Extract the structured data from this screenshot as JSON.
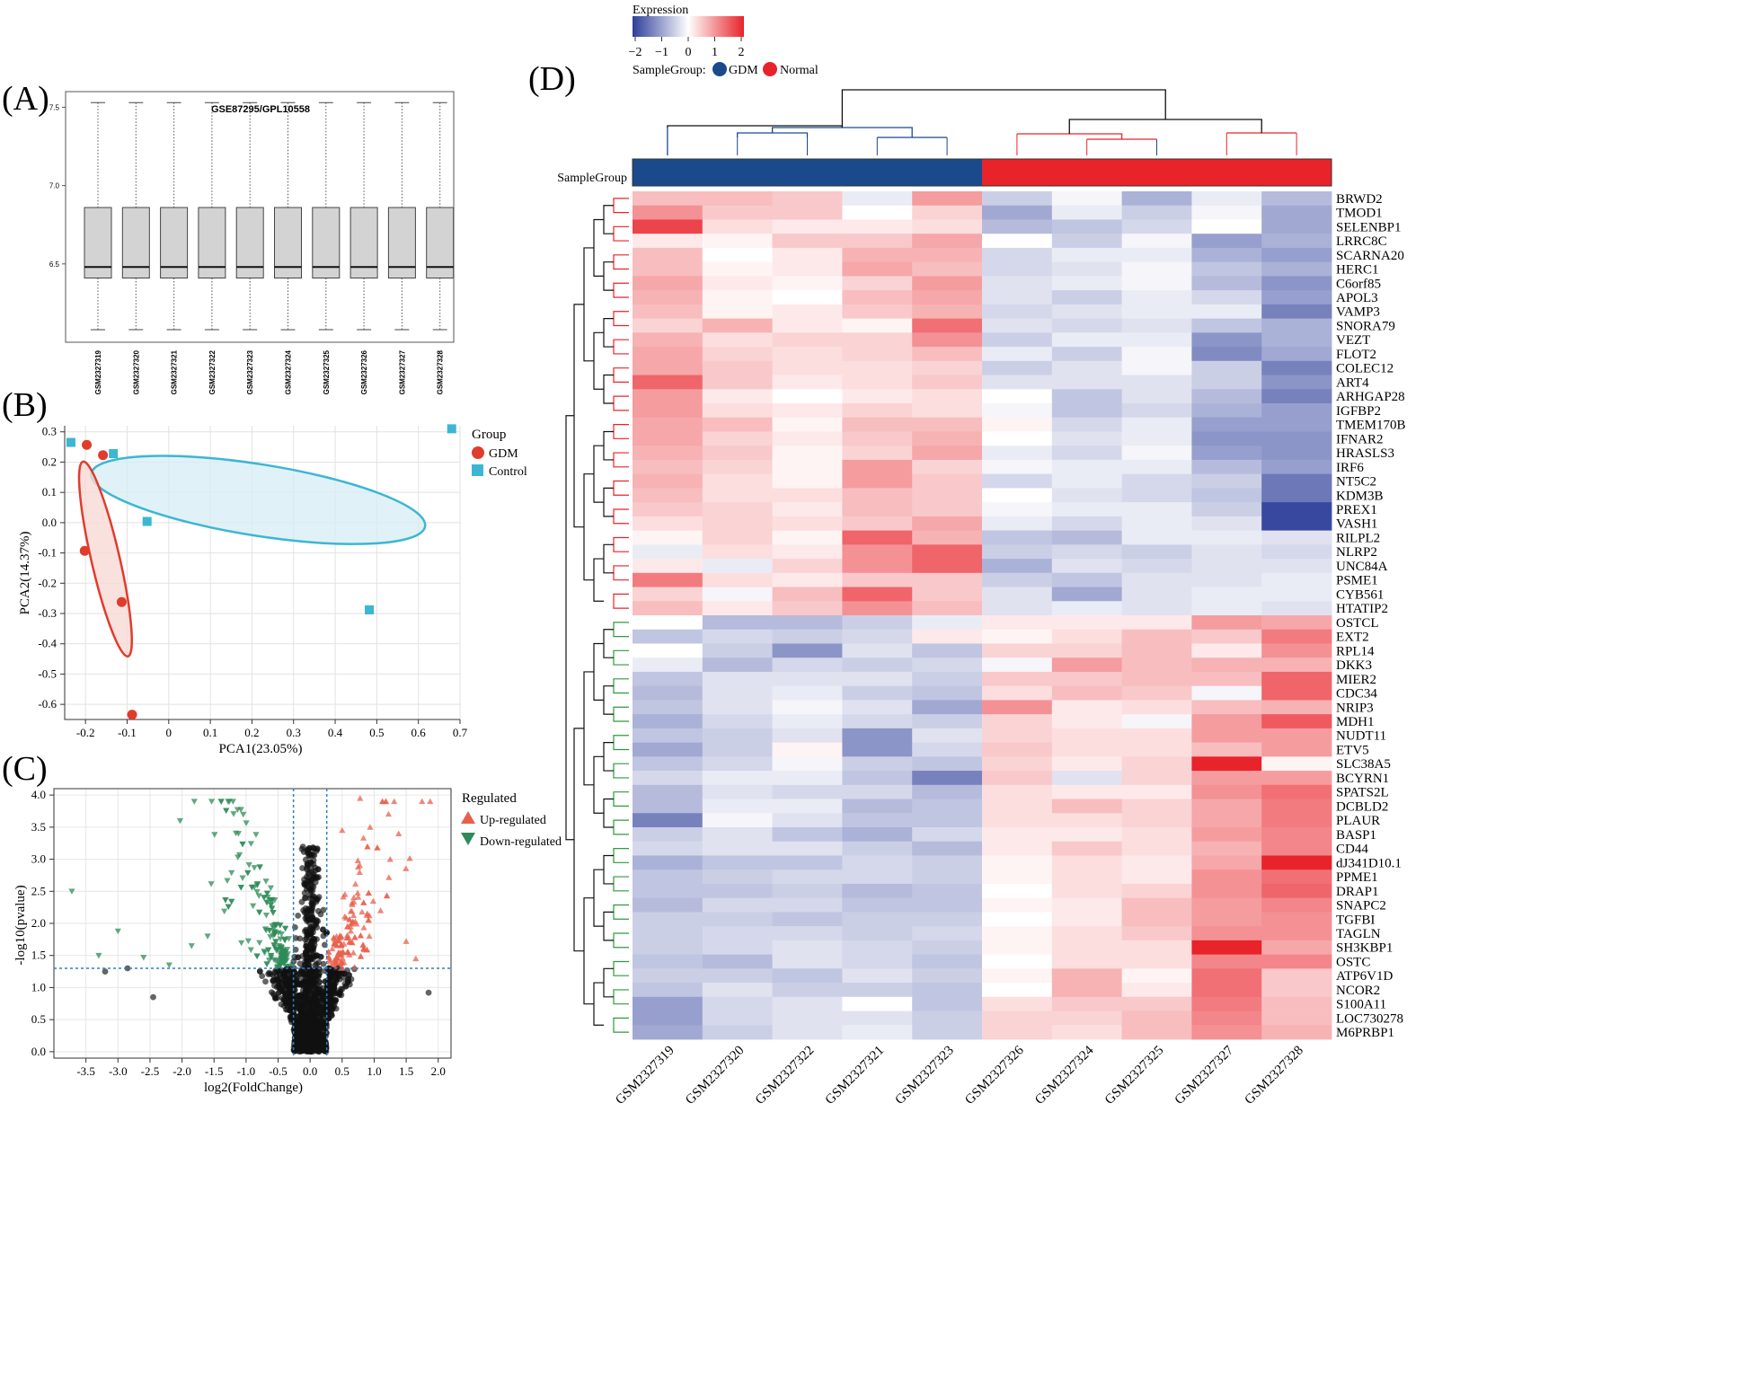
{
  "panel_labels": {
    "a": "(A)",
    "b": "(B)",
    "c": "(C)",
    "d": "(D)"
  },
  "chart_data": [
    {
      "type": "box",
      "title": "GSE87295/GPL10558",
      "categories": [
        "GSM2327319",
        "GSM2327320",
        "GSM2327321",
        "GSM2327322",
        "GSM2327323",
        "GSM2327324",
        "GSM2327325",
        "GSM2327326",
        "GSM2327327",
        "GSM2327328"
      ],
      "stats": {
        "whisker_low": 6.08,
        "q1": 6.41,
        "median": 6.48,
        "q3": 6.86,
        "whisker_high": 7.53
      },
      "y_ticks": [
        "6.5",
        "7.0",
        "7.5"
      ],
      "ylim": [
        6.0,
        7.6
      ],
      "color": "#d3d3d3"
    },
    {
      "type": "scatter",
      "xlabel": "PCA1(23.05%)",
      "ylabel": "PCA2(14.37%)",
      "xlim": [
        -0.25,
        0.7
      ],
      "ylim": [
        -0.65,
        0.32
      ],
      "x_ticks": [
        -0.2,
        -0.1,
        0.0,
        0.1,
        0.2,
        0.3,
        0.4,
        0.5,
        0.6,
        0.7
      ],
      "x_tick_labels": [
        "-0.2",
        "-0.1",
        "0",
        "0.1",
        "0.2",
        "0.3",
        "0.4",
        "0.5",
        "0.6",
        "0.7"
      ],
      "y_ticks": [
        0.3,
        0.2,
        0.1,
        0.0,
        -0.1,
        -0.2,
        -0.3,
        -0.4,
        -0.5,
        -0.6
      ],
      "y_tick_labels": [
        "0.3",
        "0.2",
        "0.1",
        "0.0",
        "-0.1",
        "-0.2",
        "-0.3",
        "-0.4",
        "-0.5",
        "-0.6"
      ],
      "legend_title": "Group",
      "series": [
        {
          "name": "GDM",
          "color": "#e03c2c",
          "marker": "circle",
          "points": [
            [
              -0.197,
              0.257
            ],
            [
              -0.158,
              0.223
            ],
            [
              -0.202,
              -0.093
            ],
            [
              -0.113,
              -0.262
            ],
            [
              -0.088,
              -0.634
            ]
          ]
        },
        {
          "name": "Control",
          "color": "#3cb6d2",
          "marker": "square",
          "points": [
            [
              -0.235,
              0.265
            ],
            [
              -0.133,
              0.228
            ],
            [
              -0.052,
              0.004
            ],
            [
              0.482,
              -0.288
            ],
            [
              0.68,
              0.31
            ]
          ]
        }
      ]
    },
    {
      "type": "volcano",
      "xlabel": "log2(FoldChange)",
      "ylabel": "-log10(pvalue)",
      "xlim": [
        -4.0,
        2.2
      ],
      "ylim": [
        -0.1,
        4.1
      ],
      "x_ticks": [
        -3.5,
        -3.0,
        -2.5,
        -2.0,
        -1.5,
        -1.0,
        -0.5,
        0.0,
        0.5,
        1.0,
        1.5,
        2.0
      ],
      "x_tick_labels": [
        "-3.5",
        "-3.0",
        "-2.5",
        "-2.0",
        "-1.5",
        "-1.0",
        "-0.5",
        "0.0",
        "0.5",
        "1.0",
        "1.5",
        "2.0"
      ],
      "y_ticks": [
        0.0,
        0.5,
        1.0,
        1.5,
        2.0,
        2.5,
        3.0,
        3.5,
        4.0
      ],
      "y_tick_labels": [
        "0.0",
        "0.5",
        "1.0",
        "1.5",
        "2.0",
        "2.5",
        "3.0",
        "3.5",
        "4.0"
      ],
      "fc_threshold": 0.26,
      "p_threshold": 1.3,
      "legend_title": "Regulated",
      "legend": [
        {
          "name": "Up-regulated",
          "color": "#e8604c"
        },
        {
          "name": "Down-regulated",
          "color": "#2e8b57"
        }
      ],
      "nonsig_color": "#111111",
      "highlight_down": [
        [
          -3.72,
          2.5
        ],
        [
          -3.0,
          1.88
        ],
        [
          -2.03,
          3.6
        ],
        [
          -3.3,
          1.5
        ],
        [
          -2.6,
          1.47
        ],
        [
          -2.2,
          1.35
        ],
        [
          -1.85,
          1.65
        ],
        [
          -1.6,
          1.8
        ]
      ],
      "highlight_up": [
        [
          0.78,
          3.95
        ],
        [
          0.5,
          3.45
        ],
        [
          1.25,
          3.0
        ],
        [
          1.65,
          1.45
        ],
        [
          1.5,
          1.72
        ],
        [
          1.1,
          2.2
        ]
      ],
      "highlight_ns": [
        [
          -2.45,
          0.85
        ],
        [
          -2.85,
          1.3
        ],
        [
          -3.2,
          1.25
        ],
        [
          1.85,
          0.92
        ]
      ]
    },
    {
      "type": "heatmap",
      "legend_title": "Expression",
      "scale_ticks": [
        "−2",
        "−1",
        "0",
        "1",
        "2"
      ],
      "sample_group_label": "SampleGroup:",
      "group_legend": [
        {
          "name": "GDM",
          "color": "#1a4a8c"
        },
        {
          "name": "Normal",
          "color": "#e8232a"
        }
      ],
      "annotation_label": "SampleGroup",
      "columns": [
        "GSM2327319",
        "GSM2327320",
        "GSM2327322",
        "GSM2327321",
        "GSM2327323",
        "GSM2327326",
        "GSM2327324",
        "GSM2327325",
        "GSM2327327",
        "GSM2327328"
      ],
      "column_groups": [
        "GDM",
        "GDM",
        "GDM",
        "GDM",
        "GDM",
        "Normal",
        "Normal",
        "Normal",
        "Normal",
        "Normal"
      ],
      "rows": [
        "BRWD2",
        "TMOD1",
        "SELENBP1",
        "LRRC8C",
        "SCARNA20",
        "HERC1",
        "C6orf85",
        "APOL3",
        "VAMP3",
        "SNORA79",
        "VEZT",
        "FLOT2",
        "COLEC12",
        "ART4",
        "ARHGAP28",
        "IGFBP2",
        "TMEM170B",
        "IFNAR2",
        "HRASLS3",
        "IRF6",
        "NT5C2",
        "KDM3B",
        "PREX1",
        "VASH1",
        "RILPL2",
        "NLRP2",
        "UNC84A",
        "PSME1",
        "CYB561",
        "HTATIP2",
        "OSTCL",
        "EXT2",
        "RPL14",
        "DKK3",
        "MIER2",
        "CDC34",
        "NRIP3",
        "MDH1",
        "NUDT11",
        "ETV5",
        "SLC38A5",
        "BCYRN1",
        "SPATS2L",
        "DCBLD2",
        "PLAUR",
        "BASP1",
        "CD44",
        "dJ341D10.1",
        "PPME1",
        "DRAP1",
        "SNAPC2",
        "TGFBI",
        "TAGLN",
        "SH3KBP1",
        "OSTC",
        "ATP6V1D",
        "NCOR2",
        "S100A11",
        "LOC730278",
        "M6PRBP1"
      ],
      "values": [
        [
          0.6,
          0.6,
          0.5,
          -0.2,
          0.9,
          -0.5,
          -0.1,
          -0.8,
          -0.2,
          -0.7
        ],
        [
          1.0,
          0.5,
          0.5,
          0.0,
          0.4,
          -0.9,
          -0.2,
          -0.5,
          -0.1,
          -0.9
        ],
        [
          1.7,
          0.3,
          0.2,
          0.2,
          0.3,
          -0.7,
          -0.6,
          -0.4,
          0.0,
          -0.9
        ],
        [
          0.2,
          0.1,
          0.5,
          0.5,
          0.8,
          0.0,
          -0.5,
          -0.1,
          -1.0,
          -0.8
        ],
        [
          0.6,
          0.0,
          0.2,
          0.7,
          0.7,
          -0.4,
          -0.2,
          -0.2,
          -0.8,
          -1.0
        ],
        [
          0.6,
          0.1,
          0.2,
          0.8,
          0.6,
          -0.4,
          -0.3,
          -0.1,
          -0.6,
          -0.8
        ],
        [
          0.8,
          0.2,
          0.1,
          0.4,
          0.9,
          -0.3,
          -0.2,
          -0.1,
          -0.7,
          -1.1
        ],
        [
          0.7,
          0.1,
          0.0,
          0.6,
          0.8,
          -0.3,
          -0.5,
          -0.2,
          -0.4,
          -1.0
        ],
        [
          0.6,
          0.1,
          0.2,
          0.5,
          0.7,
          -0.4,
          -0.3,
          -0.2,
          -0.2,
          -1.3
        ],
        [
          0.4,
          0.7,
          0.2,
          0.1,
          1.3,
          -0.3,
          -0.4,
          -0.3,
          -0.6,
          -0.8
        ],
        [
          0.7,
          0.3,
          0.4,
          0.4,
          1.0,
          -0.5,
          -0.2,
          -0.2,
          -1.1,
          -0.8
        ],
        [
          0.8,
          0.4,
          0.3,
          0.4,
          0.6,
          -0.2,
          -0.5,
          -0.1,
          -1.2,
          -0.9
        ],
        [
          0.8,
          0.5,
          0.3,
          0.3,
          0.4,
          -0.5,
          -0.3,
          -0.1,
          -0.5,
          -1.3
        ],
        [
          1.4,
          0.5,
          0.2,
          0.3,
          0.5,
          -0.3,
          -0.3,
          -0.3,
          -0.5,
          -1.1
        ],
        [
          0.9,
          0.2,
          0.0,
          0.2,
          0.3,
          0.0,
          -0.6,
          -0.3,
          -0.7,
          -1.3
        ],
        [
          0.9,
          0.3,
          0.2,
          0.4,
          0.3,
          -0.1,
          -0.6,
          -0.4,
          -0.8,
          -1.0
        ],
        [
          0.8,
          0.6,
          0.1,
          0.6,
          0.6,
          0.1,
          -0.4,
          -0.2,
          -1.0,
          -1.0
        ],
        [
          0.8,
          0.4,
          0.2,
          0.5,
          0.7,
          0.0,
          -0.3,
          -0.2,
          -1.1,
          -1.1
        ],
        [
          0.7,
          0.5,
          0.1,
          0.4,
          0.8,
          -0.2,
          -0.4,
          -0.1,
          -1.0,
          -1.1
        ],
        [
          0.6,
          0.4,
          0.1,
          0.9,
          0.4,
          -0.1,
          -0.2,
          -0.2,
          -0.7,
          -1.0
        ],
        [
          0.7,
          0.3,
          0.1,
          0.9,
          0.5,
          -0.4,
          -0.2,
          -0.4,
          -0.5,
          -1.4
        ],
        [
          0.6,
          0.3,
          0.3,
          0.6,
          0.5,
          0.0,
          -0.3,
          -0.4,
          -0.6,
          -1.4
        ],
        [
          0.5,
          0.4,
          0.2,
          0.6,
          0.5,
          -0.1,
          -0.2,
          -0.2,
          -0.5,
          -1.9
        ],
        [
          0.3,
          0.4,
          0.3,
          0.5,
          0.8,
          -0.2,
          -0.4,
          -0.2,
          -0.3,
          -1.9
        ],
        [
          0.1,
          0.4,
          0.1,
          1.4,
          0.7,
          -0.6,
          -0.7,
          -0.2,
          -0.2,
          -0.3
        ],
        [
          -0.2,
          0.3,
          0.2,
          1.0,
          1.4,
          -0.5,
          -0.4,
          -0.5,
          -0.3,
          -0.4
        ],
        [
          0.2,
          -0.2,
          0.4,
          1.0,
          1.4,
          -0.8,
          -0.3,
          -0.4,
          -0.3,
          -0.3
        ],
        [
          1.2,
          0.3,
          0.2,
          0.5,
          0.5,
          -0.5,
          -0.6,
          -0.3,
          -0.3,
          -0.2
        ],
        [
          0.4,
          -0.1,
          0.6,
          1.4,
          0.5,
          -0.3,
          -0.9,
          -0.3,
          -0.2,
          -0.2
        ],
        [
          0.6,
          0.2,
          0.5,
          1.0,
          0.6,
          -0.3,
          -0.2,
          -0.3,
          -0.2,
          -0.3
        ],
        [
          0.0,
          -0.7,
          -0.7,
          -0.5,
          -0.2,
          0.2,
          0.2,
          0.2,
          0.9,
          0.8
        ],
        [
          -0.6,
          -0.4,
          -0.5,
          -0.4,
          0.2,
          0.1,
          0.3,
          0.6,
          0.5,
          1.2
        ],
        [
          0.0,
          -0.5,
          -1.1,
          -0.3,
          -0.6,
          0.4,
          0.4,
          0.6,
          0.2,
          1.0
        ],
        [
          -0.2,
          -0.7,
          -0.4,
          -0.5,
          -0.4,
          -0.1,
          0.9,
          0.6,
          0.7,
          0.7
        ],
        [
          -0.6,
          -0.3,
          -0.3,
          -0.3,
          -0.5,
          0.5,
          0.5,
          0.6,
          0.6,
          1.4
        ],
        [
          -0.7,
          -0.3,
          -0.2,
          -0.5,
          -0.6,
          0.3,
          0.6,
          0.5,
          -0.1,
          1.4
        ],
        [
          -0.6,
          -0.3,
          -0.1,
          -0.3,
          -0.9,
          1.0,
          0.2,
          0.3,
          0.6,
          0.7
        ],
        [
          -0.8,
          -0.4,
          -0.2,
          -0.4,
          -0.5,
          0.4,
          0.2,
          -0.1,
          0.9,
          1.5
        ],
        [
          -0.6,
          -0.5,
          -0.3,
          -1.1,
          -0.3,
          0.4,
          0.3,
          0.3,
          0.9,
          0.9
        ],
        [
          -0.9,
          -0.5,
          0.1,
          -1.1,
          -0.4,
          0.5,
          0.3,
          0.3,
          0.6,
          0.9
        ],
        [
          -0.6,
          -0.4,
          -0.1,
          -0.5,
          -0.6,
          0.4,
          0.2,
          0.4,
          2.0,
          0.1
        ],
        [
          -0.4,
          -0.2,
          -0.2,
          -0.6,
          -1.3,
          0.5,
          -0.3,
          0.4,
          0.9,
          0.9
        ],
        [
          -0.7,
          -0.3,
          -0.4,
          -0.4,
          -0.7,
          0.3,
          0.2,
          0.2,
          1.0,
          1.3
        ],
        [
          -0.7,
          -0.2,
          -0.2,
          -0.7,
          -0.6,
          0.3,
          0.6,
          0.4,
          0.8,
          1.2
        ],
        [
          -1.3,
          -0.1,
          -0.3,
          -0.6,
          -0.6,
          0.3,
          0.3,
          0.4,
          0.8,
          1.2
        ],
        [
          -0.5,
          -0.3,
          -0.6,
          -0.8,
          -0.4,
          0.2,
          0.2,
          0.3,
          0.9,
          1.1
        ],
        [
          -0.4,
          -0.3,
          -0.3,
          -0.5,
          -0.7,
          0.2,
          0.5,
          0.3,
          0.7,
          1.1
        ],
        [
          -0.8,
          -0.6,
          -0.6,
          -0.4,
          -0.5,
          0.1,
          0.3,
          0.2,
          0.8,
          2.0
        ],
        [
          -0.6,
          -0.5,
          -0.4,
          -0.4,
          -0.5,
          0.1,
          0.3,
          0.2,
          1.0,
          1.3
        ],
        [
          -0.6,
          -0.6,
          -0.5,
          -0.7,
          -0.6,
          0.0,
          0.3,
          0.4,
          1.0,
          1.4
        ],
        [
          -0.7,
          -0.4,
          -0.4,
          -0.6,
          -0.6,
          0.1,
          0.2,
          0.6,
          0.9,
          1.1
        ],
        [
          -0.5,
          -0.5,
          -0.6,
          -0.5,
          -0.5,
          0.0,
          0.2,
          0.6,
          0.9,
          1.0
        ],
        [
          -0.5,
          -0.4,
          -0.4,
          -0.5,
          -0.4,
          0.1,
          0.3,
          0.5,
          1.0,
          1.0
        ],
        [
          -0.5,
          -0.4,
          -0.3,
          -0.4,
          -0.5,
          0.1,
          0.3,
          0.3,
          2.0,
          0.8
        ],
        [
          -0.6,
          -0.7,
          -0.3,
          -0.4,
          -0.6,
          0.0,
          0.3,
          0.3,
          1.1,
          1.1
        ],
        [
          -0.5,
          -0.5,
          -0.6,
          -0.3,
          -0.5,
          0.1,
          0.7,
          0.1,
          1.3,
          0.5
        ],
        [
          -0.6,
          -0.3,
          -0.5,
          -0.5,
          -0.6,
          0.0,
          0.7,
          0.2,
          1.3,
          0.5
        ],
        [
          -1.0,
          -0.4,
          -0.3,
          0.0,
          -0.6,
          0.3,
          0.5,
          0.5,
          1.2,
          0.6
        ],
        [
          -1.0,
          -0.4,
          -0.3,
          -0.3,
          -0.5,
          0.4,
          0.4,
          0.6,
          1.1,
          0.6
        ],
        [
          -0.9,
          -0.5,
          -0.3,
          -0.2,
          -0.5,
          0.4,
          0.3,
          0.6,
          1.0,
          0.7
        ]
      ]
    }
  ]
}
